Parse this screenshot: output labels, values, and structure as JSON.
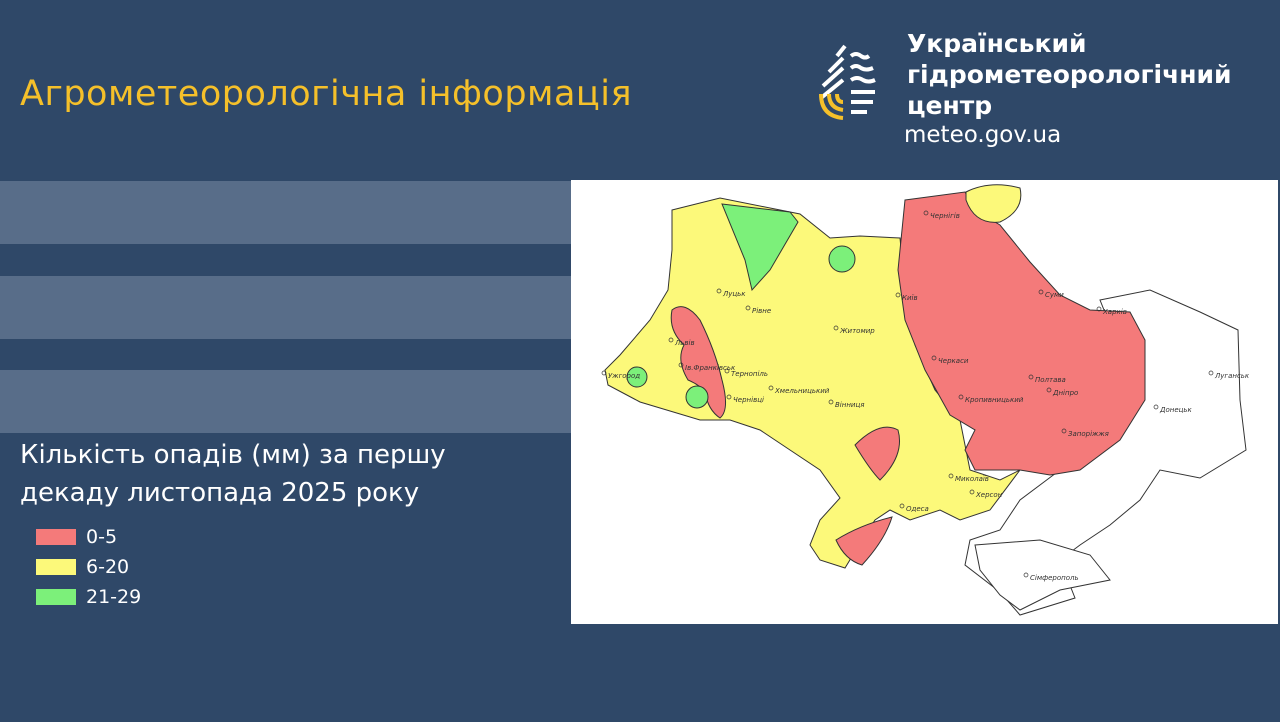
{
  "header": {
    "title": "Агрометеорологічна інформація",
    "org_lines": [
      "Український",
      "гідрометеорологічний",
      "центр"
    ],
    "website": "meteo.gov.ua",
    "logo_icon": "drop-logo-icon"
  },
  "caption": {
    "lines": [
      "Кількість опадів (мм) за першу",
      "декаду листопада 2025 року"
    ]
  },
  "legend": [
    {
      "label": "0-5",
      "color": "#f47a7a"
    },
    {
      "label": "6-20",
      "color": "#fcf97a"
    },
    {
      "label": "21-29",
      "color": "#7cf07a"
    }
  ],
  "map": {
    "cities": [
      "Чернігів",
      "Суми",
      "Харків",
      "Луцьк",
      "Рівне",
      "Житомир",
      "Київ",
      "Львів",
      "Тернопіль",
      "Хмельницький",
      "Вінниця",
      "Ів.Франківськ",
      "Ужгород",
      "Чернівці",
      "Черкаси",
      "Полтава",
      "Кропивницький",
      "Дніпро",
      "Луганськ",
      "Донецьк",
      "Запоріжжя",
      "Миколаїв",
      "Херсон",
      "Одеса",
      "Сімферополь"
    ]
  }
}
